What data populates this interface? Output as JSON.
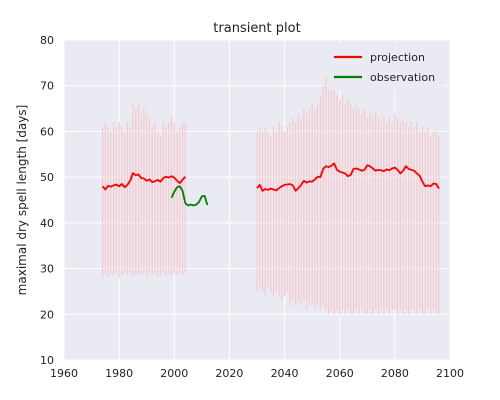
{
  "chart_data": {
    "type": "line",
    "title": "transient plot",
    "xlabel": "",
    "ylabel": "maximal dry spell length [days]",
    "xlim": [
      1960,
      2100
    ],
    "ylim": [
      10,
      80
    ],
    "xticks": [
      1960,
      1980,
      2000,
      2020,
      2040,
      2060,
      2080,
      2100
    ],
    "yticks": [
      10,
      20,
      30,
      40,
      50,
      60,
      70,
      80
    ],
    "grid": true,
    "legend": "top-right",
    "colors": {
      "projection": "#ff0000",
      "observation": "#008000",
      "range": "#f5c8cc",
      "background": "#eaeaf2",
      "grid": "#ffffff"
    },
    "series": [
      {
        "name": "projection",
        "x": [
          1974,
          1975,
          1976,
          1977,
          1978,
          1979,
          1980,
          1981,
          1982,
          1983,
          1984,
          1985,
          1986,
          1987,
          1988,
          1989,
          1990,
          1991,
          1992,
          1993,
          1994,
          1995,
          1996,
          1997,
          1998,
          1999,
          2000,
          2001,
          2002,
          2003,
          2004
        ],
        "y": [
          48.0,
          47.3,
          48.1,
          47.9,
          48.2,
          48.4,
          48.0,
          48.5,
          47.8,
          48.3,
          49.2,
          50.9,
          50.4,
          50.6,
          49.8,
          49.7,
          49.2,
          49.5,
          48.9,
          49.1,
          49.4,
          49.0,
          49.8,
          50.1,
          49.9,
          50.2,
          49.9,
          49.2,
          48.7,
          49.4,
          50.1
        ]
      },
      {
        "name": "projection",
        "x": [
          2030,
          2031,
          2032,
          2033,
          2034,
          2035,
          2036,
          2037,
          2038,
          2039,
          2040,
          2041,
          2042,
          2043,
          2044,
          2045,
          2046,
          2047,
          2048,
          2049,
          2050,
          2051,
          2052,
          2053,
          2054,
          2055,
          2056,
          2057,
          2058,
          2059,
          2060,
          2061,
          2062,
          2063,
          2064,
          2065,
          2066,
          2067,
          2068,
          2069,
          2070,
          2071,
          2072,
          2073,
          2074,
          2075,
          2076,
          2077,
          2078,
          2079,
          2080,
          2081,
          2082,
          2083,
          2084,
          2085,
          2086,
          2087,
          2088,
          2089,
          2090,
          2091,
          2092,
          2093,
          2094,
          2095,
          2096
        ],
        "y": [
          47.6,
          48.3,
          47.0,
          47.4,
          47.2,
          47.5,
          47.3,
          47.1,
          47.6,
          48.0,
          48.3,
          48.4,
          48.5,
          48.2,
          47.0,
          47.6,
          48.3,
          49.2,
          48.8,
          49.1,
          49.0,
          49.5,
          50.1,
          50.0,
          51.8,
          52.4,
          52.2,
          52.5,
          53.0,
          51.6,
          51.2,
          51.0,
          50.8,
          50.2,
          50.5,
          51.8,
          51.9,
          51.7,
          51.4,
          51.6,
          52.6,
          52.4,
          51.9,
          51.4,
          51.6,
          51.5,
          51.3,
          51.7,
          51.5,
          51.9,
          52.1,
          51.6,
          50.8,
          51.4,
          52.4,
          51.8,
          51.6,
          51.4,
          50.8,
          50.3,
          49.0,
          48.0,
          48.2,
          48.0,
          48.6,
          48.5,
          47.5
        ]
      },
      {
        "name": "observation",
        "x": [
          1999,
          2000,
          2001,
          2002,
          2003,
          2004,
          2005,
          2006,
          2007,
          2008,
          2009,
          2010,
          2011,
          2012
        ],
        "y": [
          45.5,
          46.8,
          47.8,
          48.0,
          47.0,
          44.3,
          43.8,
          44.0,
          43.8,
          44.0,
          44.6,
          45.8,
          45.9,
          43.9
        ]
      }
    ],
    "ranges": [
      {
        "x": [
          1974,
          1975,
          1976,
          1977,
          1978,
          1979,
          1980,
          1981,
          1982,
          1983,
          1984,
          1985,
          1986,
          1987,
          1988,
          1989,
          1990,
          1991,
          1992,
          1993,
          1994,
          1995,
          1996,
          1997,
          1998,
          1999,
          2000,
          2001,
          2002,
          2003,
          2004
        ],
        "low": [
          28,
          28.5,
          28,
          29,
          28.5,
          29,
          28,
          28.5,
          29,
          28.5,
          29,
          28,
          28.5,
          29,
          28.5,
          29,
          28,
          29,
          28.5,
          29,
          28,
          28.5,
          29,
          28.5,
          29,
          28.5,
          29,
          28.5,
          29,
          28.5,
          29
        ],
        "high": [
          61,
          62,
          61,
          60,
          62,
          61,
          62,
          61,
          60,
          62,
          61,
          66,
          65,
          66,
          64,
          65,
          64,
          63,
          61,
          62,
          60,
          59,
          62,
          61,
          62,
          63,
          62,
          60,
          61,
          62,
          62
        ]
      },
      {
        "x": [
          2030,
          2031,
          2032,
          2033,
          2034,
          2035,
          2036,
          2037,
          2038,
          2039,
          2040,
          2041,
          2042,
          2043,
          2044,
          2045,
          2046,
          2047,
          2048,
          2049,
          2050,
          2051,
          2052,
          2053,
          2054,
          2055,
          2056,
          2057,
          2058,
          2059,
          2060,
          2061,
          2062,
          2063,
          2064,
          2065,
          2066,
          2067,
          2068,
          2069,
          2070,
          2071,
          2072,
          2073,
          2074,
          2075,
          2076,
          2077,
          2078,
          2079,
          2080,
          2081,
          2082,
          2083,
          2084,
          2085,
          2086,
          2087,
          2088,
          2089,
          2090,
          2091,
          2092,
          2093,
          2094,
          2095,
          2096
        ],
        "low": [
          25,
          26,
          25,
          24,
          26,
          25,
          24,
          25,
          24,
          23,
          24,
          25,
          22,
          23,
          22,
          23,
          22,
          23,
          21,
          22,
          22,
          21,
          22,
          21,
          22,
          21,
          20,
          21,
          20,
          21,
          20,
          21,
          20,
          21,
          20,
          20,
          21,
          20,
          21,
          20,
          20,
          21,
          20,
          21,
          20,
          21,
          20,
          21,
          20,
          21,
          21,
          20,
          21,
          20,
          21,
          20,
          21,
          21,
          20,
          21,
          20,
          20,
          21,
          20,
          21,
          20,
          20
        ],
        "high": [
          60,
          61,
          60,
          61,
          60,
          59,
          61,
          60,
          62,
          61,
          60,
          61,
          62,
          63,
          62,
          64,
          63,
          65,
          64,
          65,
          66,
          65,
          66,
          68,
          70,
          72,
          71,
          70,
          69,
          68,
          67,
          68,
          66,
          67,
          66,
          65,
          66,
          65,
          64,
          65,
          63,
          64,
          63,
          64,
          63,
          62,
          63,
          62,
          63,
          62,
          64,
          63,
          62,
          63,
          62,
          61,
          62,
          61,
          62,
          60,
          61,
          60,
          61,
          59,
          60,
          60,
          59
        ]
      }
    ]
  }
}
